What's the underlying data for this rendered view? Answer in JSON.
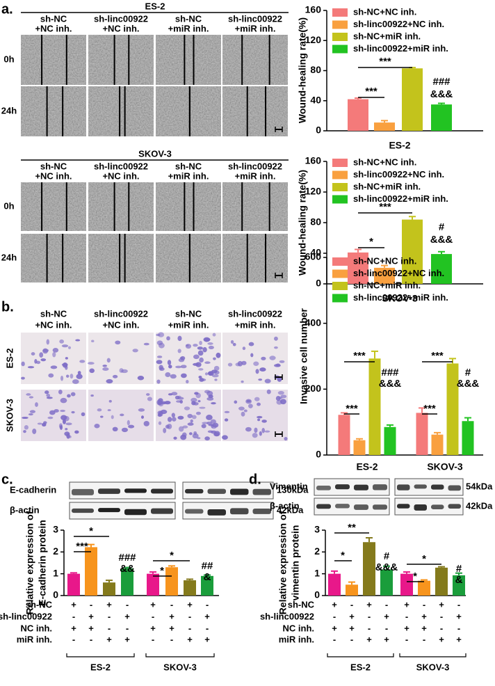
{
  "panel_a": {
    "label": "a.",
    "groups": [
      {
        "title": "ES-2",
        "columns": [
          [
            "sh-NC",
            "+NC inh."
          ],
          [
            "sh-linc00922",
            "+NC inh."
          ],
          [
            "sh-NC",
            "+miR inh."
          ],
          [
            "sh-linc00922",
            "+miR inh."
          ]
        ],
        "rows": [
          "0h",
          "24h"
        ]
      },
      {
        "title": "SKOV-3",
        "columns": [
          [
            "sh-NC",
            "+NC inh."
          ],
          [
            "sh-linc00922",
            "+NC inh."
          ],
          [
            "sh-NC",
            "+miR inh."
          ],
          [
            "sh-linc00922",
            "+miR inh."
          ]
        ],
        "rows": [
          "0h",
          "24h"
        ]
      }
    ]
  },
  "panel_b": {
    "label": "b.",
    "columns": [
      [
        "sh-NC",
        "+NC inh."
      ],
      [
        "sh-linc00922",
        "+NC inh."
      ],
      [
        "sh-NC",
        "+miR inh."
      ],
      [
        "sh-linc00922",
        "+miR inh."
      ]
    ],
    "rows": [
      "ES-2",
      "SKOV-3"
    ]
  },
  "panel_c": {
    "label": "c.",
    "blot": {
      "proteins": [
        "E-cadherin",
        "β-actin"
      ],
      "sizes": [
        "130kDa",
        "42kDa"
      ]
    }
  },
  "panel_d": {
    "label": "d.",
    "blot": {
      "proteins": [
        "Vimentin",
        "β-actin"
      ],
      "sizes": [
        "54kDa",
        "42kDa"
      ]
    }
  },
  "chart_data": [
    {
      "type": "bar",
      "y_label": "Wound-healing rate(%)",
      "categories": [
        "ES-2"
      ],
      "series": [
        {
          "name": "sh-NC+NC inh.",
          "color": "#f47a7a",
          "values": [
            42
          ],
          "errors": [
            1.5
          ]
        },
        {
          "name": "sh-linc00922+NC inh.",
          "color": "#f9a03f",
          "values": [
            11
          ],
          "errors": [
            2.5
          ]
        },
        {
          "name": "sh-NC+miR inh.",
          "color": "#c3c31c",
          "values": [
            83
          ],
          "errors": [
            1
          ]
        },
        {
          "name": "sh-linc00922+miR inh.",
          "color": "#22c322",
          "values": [
            35
          ],
          "errors": [
            1.5
          ]
        }
      ],
      "ylim": [
        0,
        160
      ],
      "yticks": [
        0,
        40,
        80,
        120,
        160
      ],
      "annotations": [
        "***",
        "***",
        "###",
        "&&&"
      ]
    },
    {
      "type": "bar",
      "y_label": "Wound-healing rate(%)",
      "categories": [
        "SKOV-3"
      ],
      "series": [
        {
          "name": "sh-NC+NC inh.",
          "color": "#f47a7a",
          "values": [
            41
          ],
          "errors": [
            4
          ]
        },
        {
          "name": "sh-linc00922+NC inh.",
          "color": "#f9a03f",
          "values": [
            21
          ],
          "errors": [
            3
          ]
        },
        {
          "name": "sh-NC+miR inh.",
          "color": "#c3c31c",
          "values": [
            84
          ],
          "errors": [
            4
          ]
        },
        {
          "name": "sh-linc00922+miR inh.",
          "color": "#22c322",
          "values": [
            39
          ],
          "errors": [
            3
          ]
        }
      ],
      "ylim": [
        0,
        160
      ],
      "yticks": [
        0,
        40,
        80,
        120,
        160
      ],
      "annotations": [
        "*",
        "***",
        "#",
        "&&&"
      ]
    },
    {
      "type": "bar",
      "y_label": "Invasive cell number",
      "categories": [
        "ES-2",
        "SKOV-3"
      ],
      "series": [
        {
          "name": "sh-NC+NC inh.",
          "color": "#f47a7a",
          "values": [
            122,
            128
          ],
          "errors": [
            6,
            15
          ]
        },
        {
          "name": "sh-linc00922+NC inh.",
          "color": "#f9a03f",
          "values": [
            45,
            62
          ],
          "errors": [
            4,
            6
          ]
        },
        {
          "name": "sh-NC+miR inh.",
          "color": "#c3c31c",
          "values": [
            293,
            278
          ],
          "errors": [
            22,
            15
          ]
        },
        {
          "name": "sh-linc00922+miR inh.",
          "color": "#22c322",
          "values": [
            85,
            103
          ],
          "errors": [
            6,
            10
          ]
        }
      ],
      "ylim": [
        0,
        600
      ],
      "yticks": [
        0,
        200,
        400,
        600
      ],
      "annotations": [
        "***",
        "***",
        "###",
        "&&&",
        "***",
        "***",
        "#",
        "&&&"
      ]
    },
    {
      "type": "bar",
      "y_label": [
        "Relative expression of",
        "E-cadherin protein"
      ],
      "categories": [
        "ES-2",
        "SKOV-3"
      ],
      "series": [
        {
          "color": "#e8188a",
          "values": [
            1.0,
            1.0
          ],
          "errors": [
            0.04,
            0.08
          ]
        },
        {
          "color": "#f7941d",
          "values": [
            2.22,
            1.3
          ],
          "errors": [
            0.12,
            0.06
          ]
        },
        {
          "color": "#847a1c",
          "values": [
            0.6,
            0.7
          ],
          "errors": [
            0.1,
            0.05
          ]
        },
        {
          "color": "#1a9d3b",
          "values": [
            1.25,
            0.9
          ],
          "errors": [
            0.04,
            0.04
          ]
        }
      ],
      "conditions": [
        {
          "label": "sh-NC",
          "signs": [
            "+",
            "-",
            "+",
            "-"
          ]
        },
        {
          "label": "sh-linc00922",
          "signs": [
            "-",
            "+",
            "-",
            "+"
          ]
        },
        {
          "label": "NC inh.",
          "signs": [
            "+",
            "+",
            "-",
            "-"
          ]
        },
        {
          "label": "miR inh.",
          "signs": [
            "-",
            "-",
            "+",
            "+"
          ]
        }
      ],
      "ylim": [
        0,
        3
      ],
      "yticks": [
        0,
        1,
        2,
        3
      ],
      "annotations": [
        "*",
        "***",
        "###",
        "&&",
        "*",
        "*",
        "##",
        "&"
      ]
    },
    {
      "type": "bar",
      "y_label": [
        "Relative expression of",
        "vimentin protein"
      ],
      "categories": [
        "ES-2",
        "SKOV-3"
      ],
      "series": [
        {
          "color": "#e8188a",
          "values": [
            1.0,
            1.0
          ],
          "errors": [
            0.12,
            0.08
          ]
        },
        {
          "color": "#f7941d",
          "values": [
            0.5,
            0.68
          ],
          "errors": [
            0.12,
            0.04
          ]
        },
        {
          "color": "#847a1c",
          "values": [
            2.45,
            1.28
          ],
          "errors": [
            0.2,
            0.04
          ]
        },
        {
          "color": "#1a9d3b",
          "values": [
            1.2,
            0.93
          ],
          "errors": [
            0.15,
            0.1
          ]
        }
      ],
      "conditions": [
        {
          "label": "sh-NC",
          "signs": [
            "+",
            "-",
            "+",
            "-"
          ]
        },
        {
          "label": "sh-linc00922",
          "signs": [
            "-",
            "+",
            "-",
            "+"
          ]
        },
        {
          "label": "NC inh.",
          "signs": [
            "+",
            "+",
            "-",
            "-"
          ]
        },
        {
          "label": "miR inh.",
          "signs": [
            "-",
            "-",
            "+",
            "+"
          ]
        }
      ],
      "ylim": [
        0,
        3
      ],
      "yticks": [
        0,
        1,
        2,
        3
      ],
      "annotations": [
        "**",
        "*",
        "#",
        "&&&",
        "*",
        "*",
        "#",
        "&"
      ]
    }
  ]
}
